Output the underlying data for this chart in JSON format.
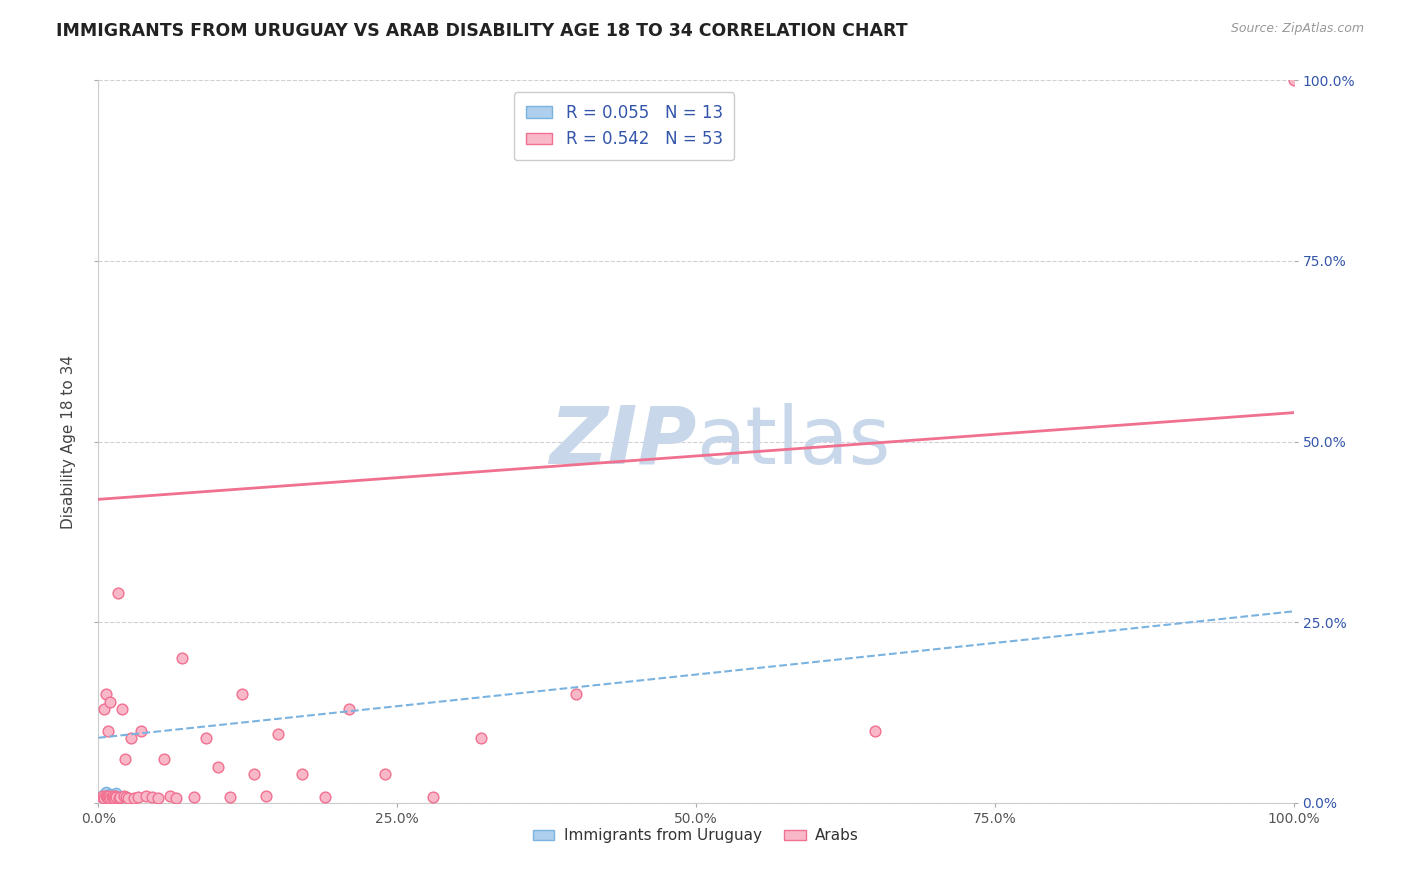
{
  "title": "IMMIGRANTS FROM URUGUAY VS ARAB DISABILITY AGE 18 TO 34 CORRELATION CHART",
  "source": "Source: ZipAtlas.com",
  "ylabel": "Disability Age 18 to 34",
  "uruguay_R": 0.055,
  "uruguay_N": 13,
  "arab_R": 0.542,
  "arab_N": 53,
  "uruguay_fill_color": "#aecfed",
  "uruguay_edge_color": "#7ab3e0",
  "arab_fill_color": "#f9b8c8",
  "arab_edge_color": "#f07090",
  "uruguay_line_color": "#7ab3e0",
  "arab_line_color": "#f07090",
  "text_color": "#3355aa",
  "watermark_color": "#c8d8ea",
  "background_color": "#ffffff",
  "grid_color": "#d0d0d8",
  "xlim": [
    0.0,
    1.0
  ],
  "ylim": [
    0.0,
    1.0
  ],
  "x_ticks": [
    0.0,
    0.25,
    0.5,
    0.75,
    1.0
  ],
  "x_tick_labels": [
    "0.0%",
    "25.0%",
    "50.0%",
    "75.0%",
    "100.0%"
  ],
  "y_tick_labels_right": [
    "0.0%",
    "25.0%",
    "50.0%",
    "75.0%",
    "100.0%"
  ],
  "uruguay_scatter_x": [
    0.003,
    0.004,
    0.005,
    0.006,
    0.006,
    0.007,
    0.008,
    0.009,
    0.01,
    0.011,
    0.013,
    0.015,
    0.02
  ],
  "uruguay_scatter_y": [
    0.01,
    0.008,
    0.012,
    0.005,
    0.015,
    0.008,
    0.01,
    0.007,
    0.012,
    0.009,
    0.011,
    0.013,
    0.008
  ],
  "arab_scatter_x": [
    0.003,
    0.004,
    0.005,
    0.005,
    0.006,
    0.006,
    0.007,
    0.008,
    0.008,
    0.009,
    0.01,
    0.01,
    0.011,
    0.012,
    0.013,
    0.014,
    0.015,
    0.016,
    0.017,
    0.018,
    0.02,
    0.021,
    0.022,
    0.023,
    0.025,
    0.027,
    0.03,
    0.033,
    0.036,
    0.04,
    0.045,
    0.05,
    0.055,
    0.06,
    0.065,
    0.07,
    0.08,
    0.09,
    0.1,
    0.11,
    0.12,
    0.13,
    0.14,
    0.15,
    0.17,
    0.19,
    0.21,
    0.24,
    0.28,
    0.32,
    0.4,
    0.65,
    1.0
  ],
  "arab_scatter_y": [
    0.008,
    0.01,
    0.007,
    0.13,
    0.009,
    0.15,
    0.008,
    0.007,
    0.1,
    0.009,
    0.006,
    0.14,
    0.008,
    0.01,
    0.007,
    0.009,
    0.008,
    0.29,
    0.007,
    0.008,
    0.13,
    0.009,
    0.06,
    0.008,
    0.007,
    0.09,
    0.007,
    0.008,
    0.1,
    0.009,
    0.008,
    0.007,
    0.06,
    0.009,
    0.007,
    0.2,
    0.008,
    0.09,
    0.05,
    0.008,
    0.15,
    0.04,
    0.009,
    0.095,
    0.04,
    0.008,
    0.13,
    0.04,
    0.008,
    0.09,
    0.15,
    0.1,
    1.0
  ],
  "arab_line_start_x": 0.0,
  "arab_line_start_y": 0.42,
  "arab_line_end_x": 1.0,
  "arab_line_end_y": 0.54,
  "uruguay_line_start_x": 0.0,
  "uruguay_line_start_y": 0.09,
  "uruguay_line_end_x": 1.0,
  "uruguay_line_end_y": 0.265
}
